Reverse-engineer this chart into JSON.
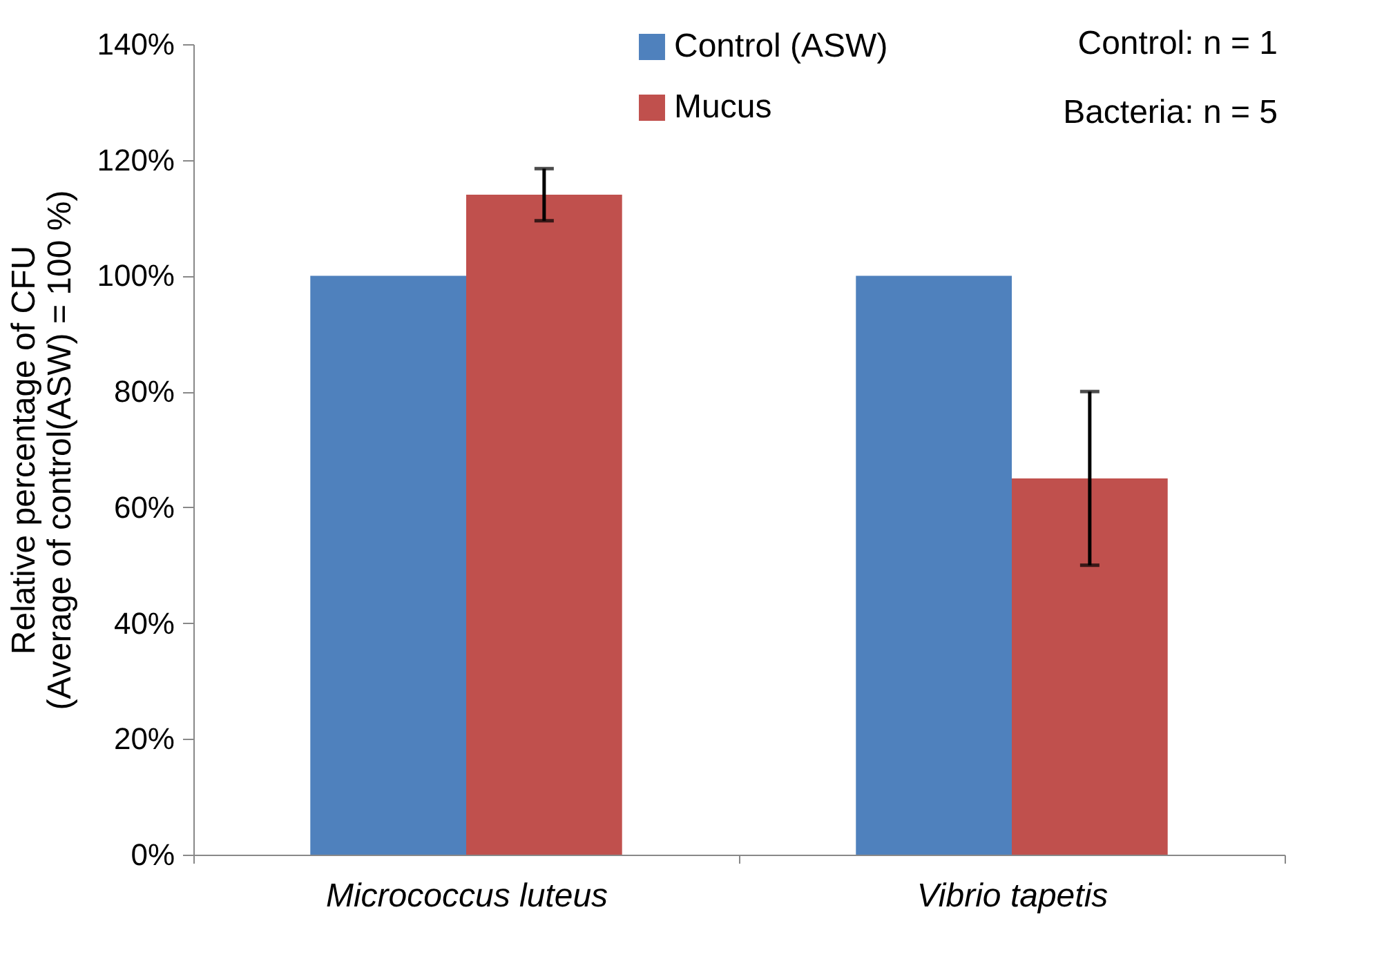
{
  "chart_data": {
    "type": "bar",
    "ylabel": "Relative percentage of CFU\n(Average of control(ASW) = 100 %)",
    "categories": [
      "Micrococcus luteus",
      "Vibrio tapetis"
    ],
    "series": [
      {
        "name": "Control (ASW)",
        "color": "#4f81bd",
        "values": [
          100,
          100
        ]
      },
      {
        "name": "Mucus",
        "color": "#c0504d",
        "values": [
          114,
          65
        ],
        "errors": [
          4.5,
          15
        ]
      }
    ],
    "ylim": [
      0,
      140
    ],
    "yticks": [
      {
        "value": 0,
        "label": "0%"
      },
      {
        "value": 20,
        "label": "20%"
      },
      {
        "value": 40,
        "label": "40%"
      },
      {
        "value": 60,
        "label": "60%"
      },
      {
        "value": 80,
        "label": "80%"
      },
      {
        "value": 100,
        "label": "100%"
      },
      {
        "value": 120,
        "label": "120%"
      },
      {
        "value": 140,
        "label": "140%"
      }
    ],
    "legend": "top right",
    "annotations": [
      "Control: n = 1",
      "Bacteria: n = 5"
    ]
  }
}
